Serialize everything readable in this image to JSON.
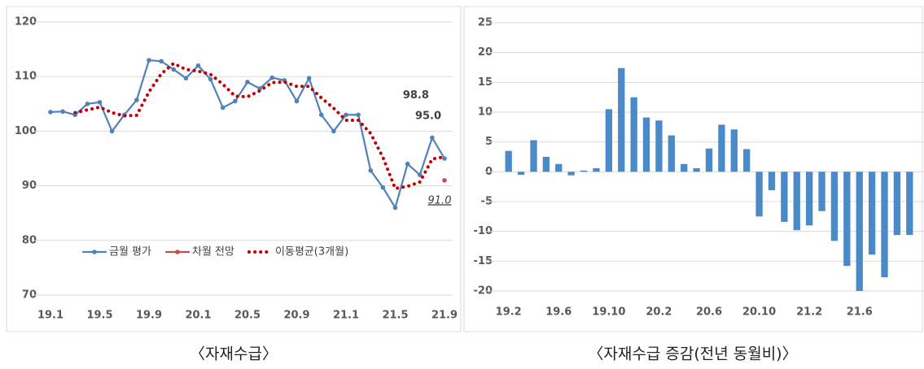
{
  "chart_data": [
    {
      "type": "line",
      "title": "〈자재수급〉",
      "categories": [
        "19.1",
        null,
        null,
        null,
        "19.5",
        null,
        null,
        null,
        "19.9",
        null,
        null,
        null,
        "20.1",
        null,
        null,
        null,
        "20.5",
        null,
        null,
        null,
        "20.9",
        null,
        null,
        null,
        "21.1",
        null,
        null,
        null,
        "21.5",
        null,
        null,
        null,
        "21.9"
      ],
      "series": [
        {
          "name": "금월 평가",
          "color": "#4f81bd",
          "line_style": "solid",
          "marker": true,
          "values": [
            103.5,
            103.6,
            103.0,
            105.0,
            105.3,
            100.0,
            103.0,
            105.7,
            113.0,
            112.8,
            111.3,
            109.7,
            112.0,
            109.5,
            104.3,
            105.5,
            109.0,
            107.8,
            109.8,
            109.3,
            105.5,
            109.7,
            103.0,
            100.0,
            103.0,
            103.0,
            92.8,
            89.7,
            86.0,
            94.0,
            92.0,
            98.8,
            95.0
          ],
          "value_labels": [
            null,
            null,
            null,
            null,
            null,
            null,
            null,
            null,
            null,
            null,
            null,
            null,
            null,
            null,
            null,
            null,
            null,
            null,
            null,
            null,
            null,
            null,
            null,
            null,
            null,
            null,
            null,
            null,
            null,
            null,
            null,
            "98.8",
            "95.0"
          ]
        },
        {
          "name": "차월 전망",
          "color": "#c0504d",
          "line_style": "solid",
          "marker": true,
          "values": [
            null,
            null,
            null,
            null,
            null,
            null,
            null,
            null,
            null,
            null,
            null,
            null,
            null,
            null,
            null,
            null,
            null,
            null,
            null,
            null,
            null,
            null,
            null,
            null,
            null,
            null,
            null,
            null,
            null,
            null,
            null,
            null,
            91.0
          ],
          "value_labels": [
            null,
            null,
            null,
            null,
            null,
            null,
            null,
            null,
            null,
            null,
            null,
            null,
            null,
            null,
            null,
            null,
            null,
            null,
            null,
            null,
            null,
            null,
            null,
            null,
            null,
            null,
            null,
            null,
            null,
            null,
            null,
            null,
            "91.0"
          ]
        },
        {
          "name": "이동평균(3개월)",
          "color": "#c00000",
          "line_style": "dotted",
          "marker": false,
          "values": [
            null,
            null,
            103.4,
            103.9,
            104.4,
            103.4,
            102.8,
            102.9,
            107.2,
            110.5,
            112.4,
            111.3,
            111.0,
            110.4,
            108.6,
            106.4,
            106.3,
            107.4,
            108.9,
            109.0,
            108.2,
            108.2,
            106.1,
            104.2,
            102.0,
            102.0,
            99.6,
            95.2,
            89.5,
            89.9,
            90.7,
            94.9,
            95.3
          ]
        }
      ],
      "ylim": [
        70,
        120
      ],
      "yticks": [
        70,
        80,
        90,
        100,
        110,
        120
      ],
      "grid": true,
      "legend": "bottom"
    },
    {
      "type": "bar",
      "title": "〈자재수급 증감(전년 동월비)〉",
      "categories": [
        "19.2",
        null,
        null,
        null,
        "19.6",
        null,
        null,
        null,
        "19.10",
        null,
        null,
        null,
        "20.2",
        null,
        null,
        null,
        "20.6",
        null,
        null,
        null,
        "20.10",
        null,
        null,
        null,
        "21.2",
        null,
        null,
        null,
        "21.6",
        null,
        null,
        null,
        null
      ],
      "color": "#4a8ac9",
      "values": [
        3.5,
        -0.5,
        5.3,
        2.5,
        1.3,
        -0.6,
        0.2,
        0.6,
        10.5,
        17.4,
        12.5,
        9.1,
        8.6,
        6.1,
        1.3,
        0.6,
        3.9,
        7.9,
        7.1,
        3.8,
        -7.5,
        -3.1,
        -8.4,
        -9.8,
        -9.0,
        -6.6,
        -11.6,
        -15.8,
        -20.0,
        -13.9,
        -17.7,
        -10.6,
        -10.6
      ],
      "ylim": [
        -20,
        25
      ],
      "yticks": [
        -20,
        -15,
        -10,
        -5,
        0,
        5,
        10,
        15,
        20,
        25
      ],
      "grid": true
    }
  ]
}
